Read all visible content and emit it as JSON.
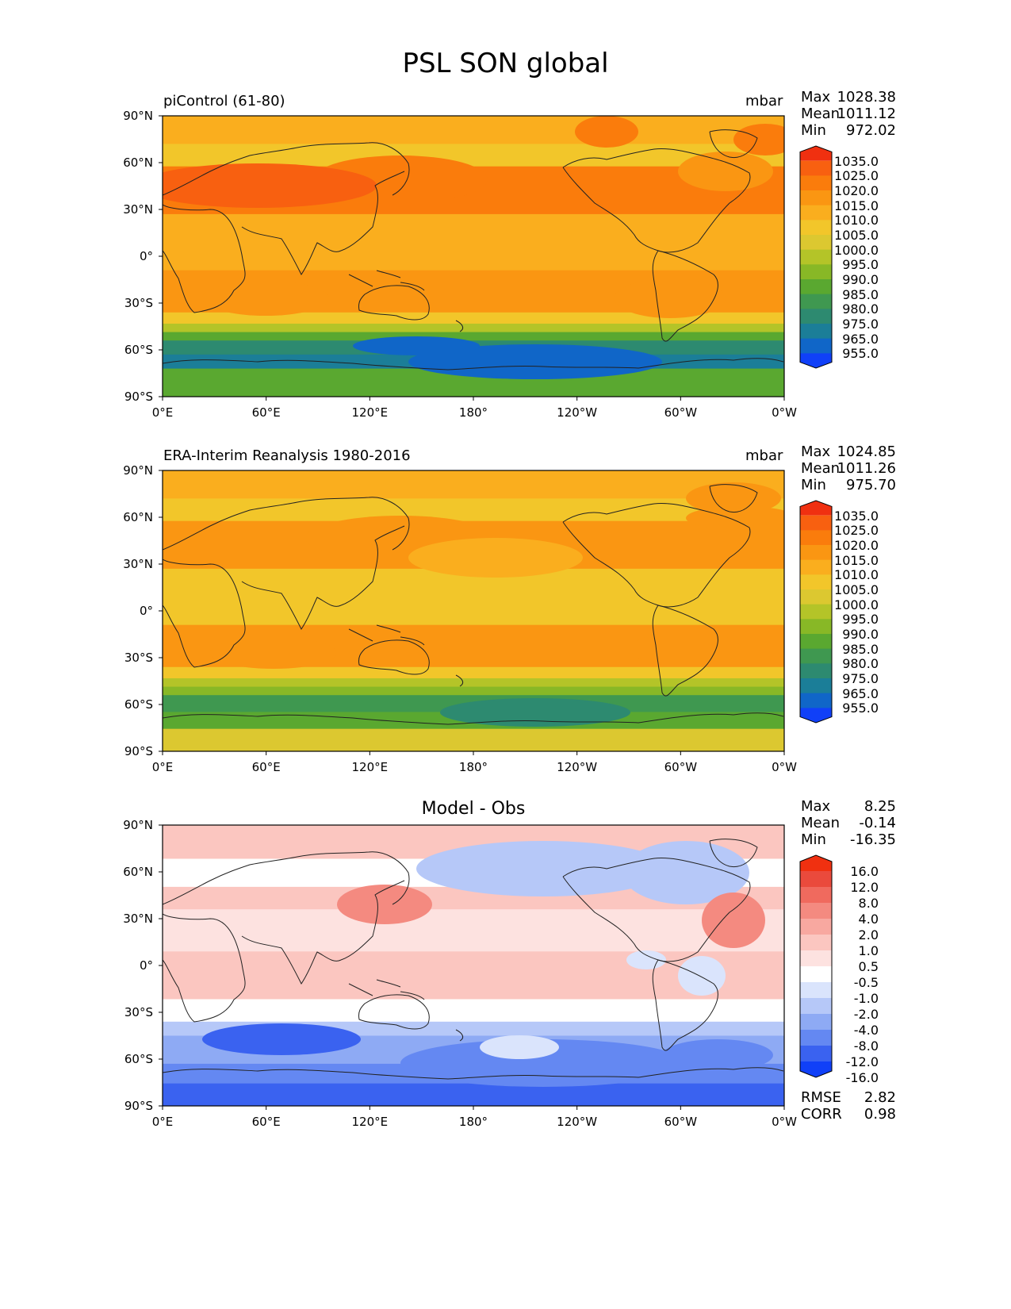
{
  "figure": {
    "title": "PSL SON global"
  },
  "lat_ticks": [
    "90°N",
    "60°N",
    "30°N",
    "0°",
    "30°S",
    "60°S",
    "90°S"
  ],
  "lon_ticks": [
    "0°E",
    "60°E",
    "120°E",
    "180°",
    "120°W",
    "60°W",
    "0°W"
  ],
  "colors": {
    "abs_levels": [
      "#1040f8",
      "#1066c8",
      "#1b7e98",
      "#2d8a70",
      "#3f9850",
      "#5aa830",
      "#88b826",
      "#b4c428",
      "#dcc830",
      "#f2c62a",
      "#faae1e",
      "#fa9612",
      "#fa7c0c",
      "#f86010",
      "#f03010"
    ],
    "diff_levels": [
      "#1040f8",
      "#3a62f0",
      "#6488f2",
      "#8eaaf4",
      "#b6c8f8",
      "#dae4fc",
      "#ffffff",
      "#fde2e0",
      "#fbc6c0",
      "#f8a8a0",
      "#f48a80",
      "#f06a5e",
      "#ea4a3c",
      "#f03010"
    ]
  },
  "panels": [
    {
      "id": "picontrol",
      "title": "piControl (61-80)",
      "units": "mbar",
      "stats": {
        "max_label": "Max",
        "max": "1028.38",
        "mean_label": "Mean",
        "mean": "1011.12",
        "min_label": "Min",
        "min": "972.02"
      },
      "colorbar_labels": [
        "1035.0",
        "1025.0",
        "1020.0",
        "1015.0",
        "1010.0",
        "1005.0",
        "1000.0",
        "995.0",
        "990.0",
        "985.0",
        "980.0",
        "975.0",
        "965.0",
        "955.0"
      ]
    },
    {
      "id": "era-interim",
      "title": "ERA-Interim Reanalysis 1980-2016",
      "units": "mbar",
      "stats": {
        "max_label": "Max",
        "max": "1024.85",
        "mean_label": "Mean",
        "mean": "1011.26",
        "min_label": "Min",
        "min": "975.70"
      },
      "colorbar_labels": [
        "1035.0",
        "1025.0",
        "1020.0",
        "1015.0",
        "1010.0",
        "1005.0",
        "1000.0",
        "995.0",
        "990.0",
        "985.0",
        "980.0",
        "975.0",
        "965.0",
        "955.0"
      ]
    },
    {
      "id": "model-minus-obs",
      "title": "Model - Obs",
      "units": "",
      "stats": {
        "max_label": "Max",
        "max": "8.25",
        "mean_label": "Mean",
        "mean": "-0.14",
        "min_label": "Min",
        "min": "-16.35"
      },
      "colorbar_labels": [
        "16.0",
        "12.0",
        "8.0",
        "4.0",
        "2.0",
        "1.0",
        "0.5",
        "-0.5",
        "-1.0",
        "-2.0",
        "-4.0",
        "-8.0",
        "-12.0",
        "-16.0"
      ],
      "rmse_label": "RMSE",
      "rmse": "2.82",
      "corr_label": "CORR",
      "corr": "0.98"
    }
  ]
}
